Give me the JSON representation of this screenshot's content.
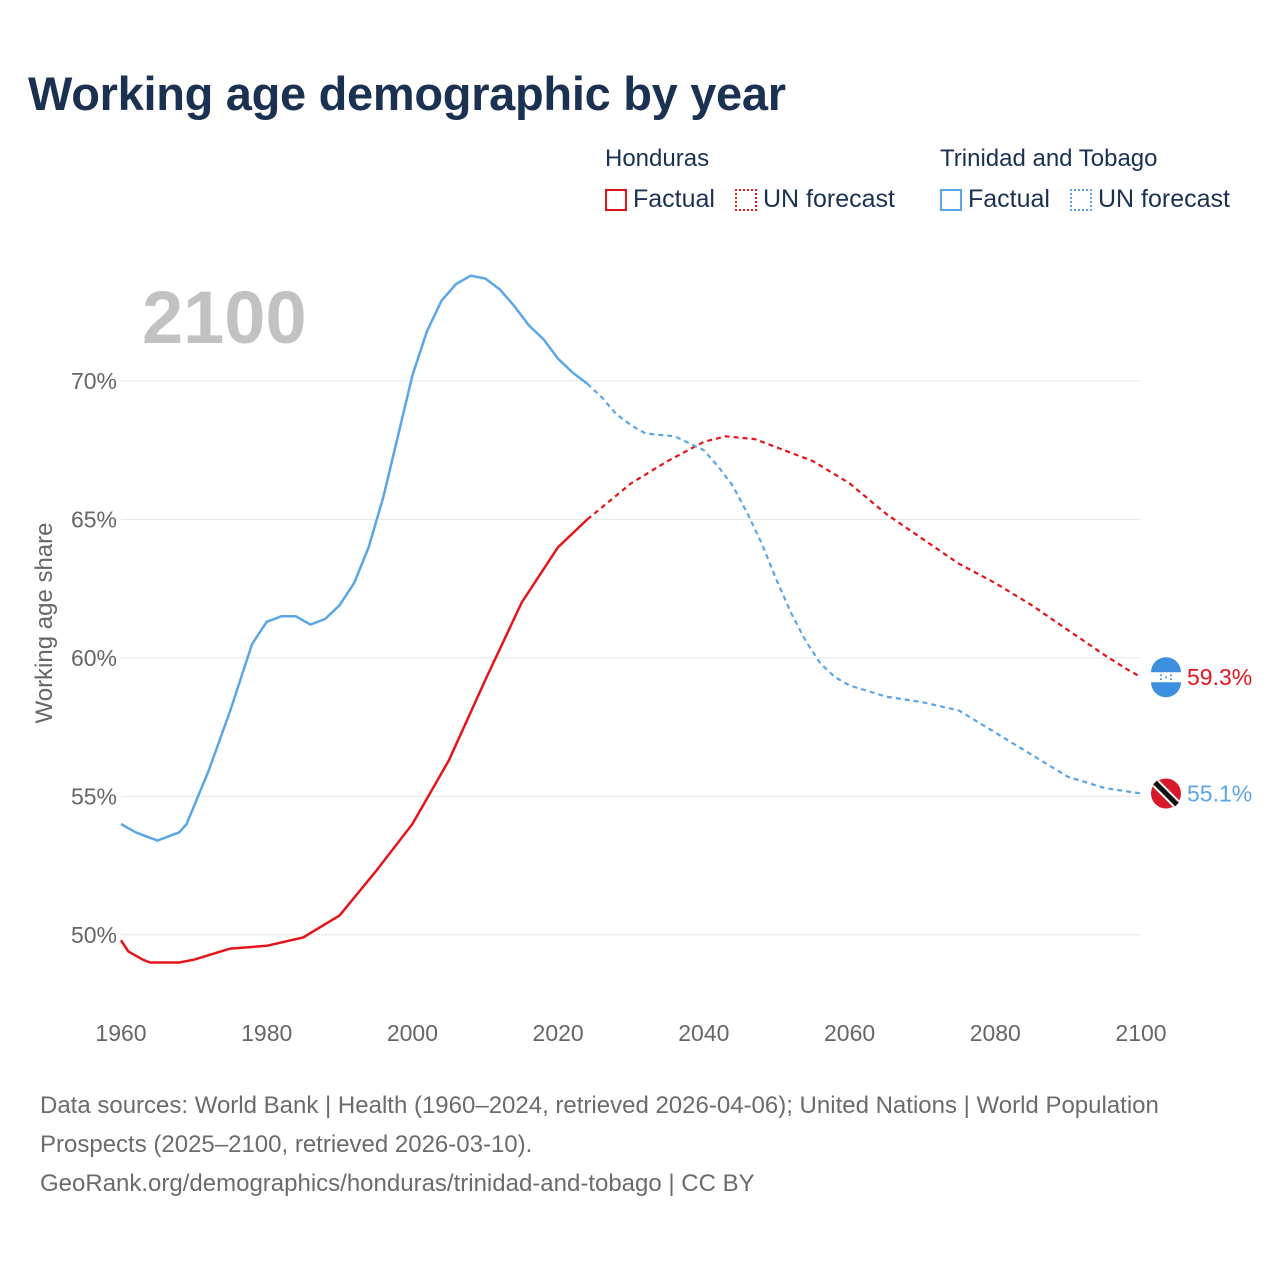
{
  "title": "Working age demographic by year",
  "legend": {
    "groups": [
      {
        "country": "Honduras",
        "factual_label": "Factual",
        "forecast_label": "UN forecast",
        "color": "#e3151b"
      },
      {
        "country": "Trinidad and Tobago",
        "factual_label": "Factual",
        "forecast_label": "UN forecast",
        "color": "#5ba6e6"
      }
    ]
  },
  "year_watermark": "2100",
  "footer": {
    "sources": "Data sources: World Bank | Health (1960–2024, retrieved 2026-04-06); United Nations | World Population Prospects (2025–2100, retrieved 2026-03-10).",
    "link": "GeoRank.org/demographics/honduras/trinidad-and-tobago | CC BY"
  },
  "chart_data": {
    "type": "line",
    "title": "Working age demographic by year",
    "xlabel": "",
    "ylabel": "Working age share",
    "xlim": [
      1960,
      2100
    ],
    "ylim": [
      47.5,
      73.5
    ],
    "x_ticks": [
      1960,
      1980,
      2000,
      2020,
      2040,
      2060,
      2080,
      2100
    ],
    "x_tick_labels": [
      "1960",
      "1980",
      "2000",
      "2020",
      "2040",
      "2060",
      "2080",
      "2100"
    ],
    "y_ticks": [
      50,
      55,
      60,
      65,
      70
    ],
    "y_tick_labels": [
      "50%",
      "55%",
      "60%",
      "65%",
      "70%"
    ],
    "forecast_start": 2024,
    "grid": true,
    "series": [
      {
        "name": "Honduras",
        "color": "#e3151b",
        "end_label": "59.3%",
        "flag_icon": "honduras-flag-icon",
        "points": [
          [
            1960,
            49.8
          ],
          [
            1961,
            49.4
          ],
          [
            1963,
            49.1
          ],
          [
            1964,
            49.0
          ],
          [
            1968,
            49.0
          ],
          [
            1970,
            49.1
          ],
          [
            1975,
            49.5
          ],
          [
            1980,
            49.6
          ],
          [
            1985,
            49.9
          ],
          [
            1990,
            50.7
          ],
          [
            1995,
            52.3
          ],
          [
            2000,
            54.0
          ],
          [
            2005,
            56.3
          ],
          [
            2010,
            59.2
          ],
          [
            2015,
            62.0
          ],
          [
            2020,
            64.0
          ],
          [
            2024,
            65.0
          ],
          [
            2030,
            66.3
          ],
          [
            2035,
            67.1
          ],
          [
            2040,
            67.8
          ],
          [
            2043,
            68.0
          ],
          [
            2047,
            67.9
          ],
          [
            2050,
            67.6
          ],
          [
            2055,
            67.1
          ],
          [
            2060,
            66.3
          ],
          [
            2065,
            65.2
          ],
          [
            2070,
            64.3
          ],
          [
            2075,
            63.4
          ],
          [
            2080,
            62.7
          ],
          [
            2085,
            61.9
          ],
          [
            2090,
            61.0
          ],
          [
            2095,
            60.1
          ],
          [
            2098,
            59.6
          ],
          [
            2100,
            59.3
          ]
        ]
      },
      {
        "name": "Trinidad and Tobago",
        "color": "#5ba6e6",
        "end_label": "55.1%",
        "flag_icon": "trinidad-and-tobago-flag-icon",
        "points": [
          [
            1960,
            54.0
          ],
          [
            1962,
            53.7
          ],
          [
            1965,
            53.4
          ],
          [
            1968,
            53.7
          ],
          [
            1969,
            54.0
          ],
          [
            1972,
            55.9
          ],
          [
            1975,
            58.1
          ],
          [
            1978,
            60.5
          ],
          [
            1980,
            61.3
          ],
          [
            1982,
            61.5
          ],
          [
            1984,
            61.5
          ],
          [
            1986,
            61.2
          ],
          [
            1988,
            61.4
          ],
          [
            1990,
            61.9
          ],
          [
            1992,
            62.7
          ],
          [
            1994,
            64.0
          ],
          [
            1996,
            65.8
          ],
          [
            1998,
            68.0
          ],
          [
            2000,
            70.2
          ],
          [
            2002,
            71.8
          ],
          [
            2004,
            72.9
          ],
          [
            2006,
            73.5
          ],
          [
            2008,
            73.8
          ],
          [
            2010,
            73.7
          ],
          [
            2012,
            73.3
          ],
          [
            2014,
            72.7
          ],
          [
            2016,
            72.0
          ],
          [
            2018,
            71.5
          ],
          [
            2020,
            70.8
          ],
          [
            2022,
            70.3
          ],
          [
            2024,
            69.9
          ],
          [
            2026,
            69.4
          ],
          [
            2028,
            68.8
          ],
          [
            2030,
            68.4
          ],
          [
            2032,
            68.1
          ],
          [
            2036,
            68.0
          ],
          [
            2040,
            67.5
          ],
          [
            2042,
            66.9
          ],
          [
            2044,
            66.2
          ],
          [
            2046,
            65.2
          ],
          [
            2048,
            64.1
          ],
          [
            2050,
            62.8
          ],
          [
            2052,
            61.6
          ],
          [
            2054,
            60.6
          ],
          [
            2056,
            59.8
          ],
          [
            2058,
            59.3
          ],
          [
            2060,
            59.0
          ],
          [
            2065,
            58.6
          ],
          [
            2070,
            58.4
          ],
          [
            2075,
            58.1
          ],
          [
            2080,
            57.3
          ],
          [
            2085,
            56.5
          ],
          [
            2090,
            55.7
          ],
          [
            2095,
            55.3
          ],
          [
            2100,
            55.1
          ]
        ]
      }
    ]
  }
}
